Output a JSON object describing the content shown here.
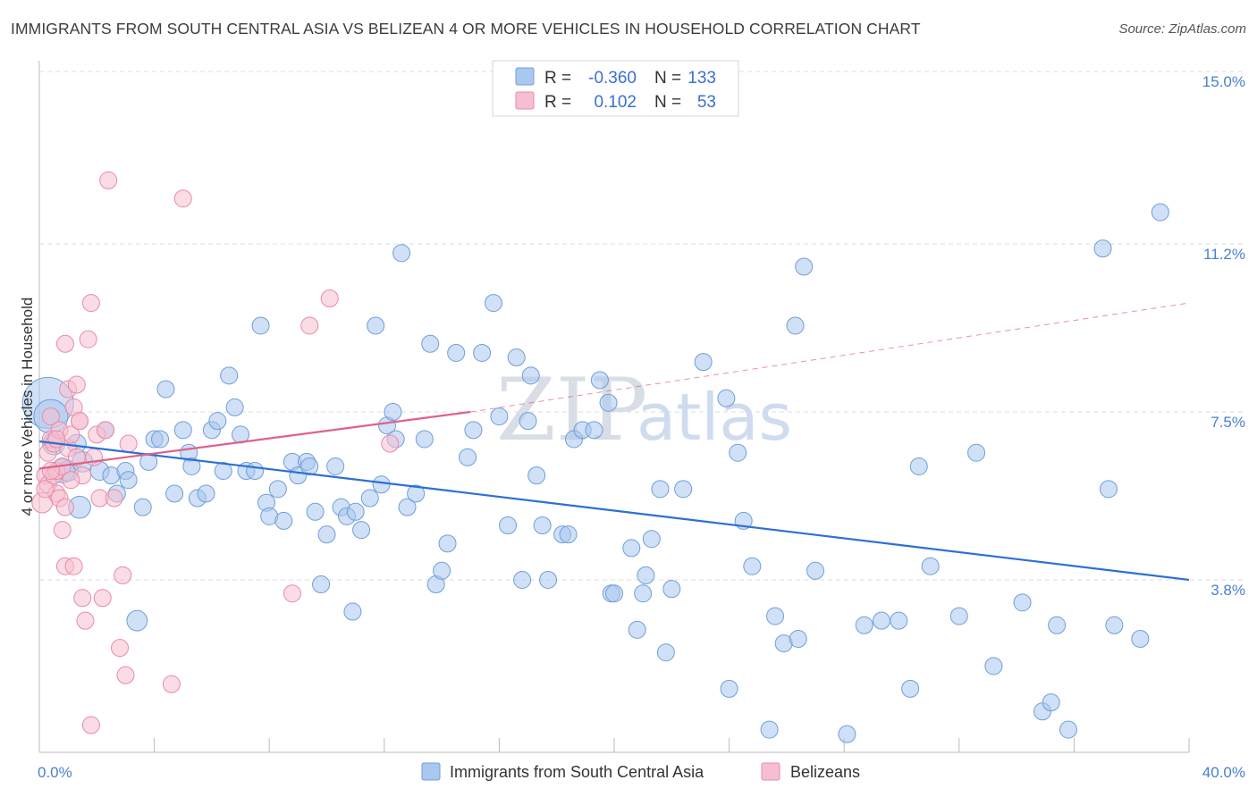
{
  "title": "IMMIGRANTS FROM SOUTH CENTRAL ASIA VS BELIZEAN 4 OR MORE VEHICLES IN HOUSEHOLD CORRELATION CHART",
  "source": "Source: ZipAtlas.com",
  "watermark": {
    "zip": "ZIP",
    "atlas": "atlas"
  },
  "colors": {
    "blue_fill": "#aac7ee",
    "blue_stroke": "#6f9fd8",
    "blue_line": "#2b6fd6",
    "pink_fill": "#f6bfd0",
    "pink_stroke": "#e98aa8",
    "pink_line": "#e0608b",
    "grid": "#dddddd",
    "tick_text": "#4a7fd0"
  },
  "legend": {
    "rows": [
      {
        "r_label": "R =",
        "r_value": "-0.360",
        "n_label": "N =",
        "n_value": "133"
      },
      {
        "r_label": "R =",
        "r_value": "0.102",
        "n_label": "N =",
        "n_value": "53"
      }
    ]
  },
  "bottom_legend": [
    "Immigrants from South Central Asia",
    "Belizeans"
  ],
  "chart_data": {
    "type": "scatter",
    "xlabel": "",
    "ylabel": "4 or more Vehicles in Household",
    "xlim": [
      0,
      40
    ],
    "ylim": [
      0,
      15.0
    ],
    "x_tick_labels": [
      "0.0%",
      "40.0%"
    ],
    "y_tick_labels": [
      {
        "value": 3.8,
        "label": "3.8%"
      },
      {
        "value": 7.5,
        "label": "7.5%"
      },
      {
        "value": 11.2,
        "label": "11.2%"
      },
      {
        "value": 15.0,
        "label": "15.0%"
      }
    ],
    "grid": true,
    "legend_placement": "top-center",
    "series": [
      {
        "name": "Immigrants from South Central Asia",
        "r": -0.36,
        "n": 133,
        "trend": {
          "x0": 0,
          "y0": 6.85,
          "x1": 40,
          "y1": 3.8
        },
        "points": [
          [
            0.3,
            7.7,
            3
          ],
          [
            0.4,
            7.4,
            2
          ],
          [
            0.5,
            6.8,
            1.3
          ],
          [
            0.8,
            6.2,
            1.4
          ],
          [
            1.0,
            6.2,
            1.2
          ],
          [
            1.5,
            6.4,
            1.2
          ],
          [
            1.3,
            6.8,
            1.1
          ],
          [
            1.4,
            5.4,
            1.3
          ],
          [
            2.1,
            6.2,
            1.1
          ],
          [
            2.3,
            7.1,
            1
          ],
          [
            2.5,
            6.1,
            1
          ],
          [
            2.7,
            5.7,
            1
          ],
          [
            3.0,
            6.2,
            1
          ],
          [
            3.1,
            6.0,
            1
          ],
          [
            3.4,
            2.9,
            1.2
          ],
          [
            3.6,
            5.4,
            1
          ],
          [
            3.8,
            6.4,
            1
          ],
          [
            4.0,
            6.9,
            1
          ],
          [
            4.2,
            6.9,
            1
          ],
          [
            4.4,
            8.0,
            1
          ],
          [
            4.7,
            5.7,
            1
          ],
          [
            5.0,
            7.1,
            1
          ],
          [
            5.2,
            6.6,
            1
          ],
          [
            5.3,
            6.3,
            1
          ],
          [
            5.5,
            5.6,
            1
          ],
          [
            5.8,
            5.7,
            1
          ],
          [
            6.0,
            7.1,
            1
          ],
          [
            6.2,
            7.3,
            1
          ],
          [
            6.4,
            6.2,
            1
          ],
          [
            6.6,
            8.3,
            1
          ],
          [
            6.8,
            7.6,
            1
          ],
          [
            7.0,
            7.0,
            1
          ],
          [
            7.2,
            6.2,
            1
          ],
          [
            7.5,
            6.2,
            1
          ],
          [
            7.7,
            9.4,
            1
          ],
          [
            7.9,
            5.5,
            1
          ],
          [
            8.0,
            5.2,
            1
          ],
          [
            8.3,
            5.8,
            1
          ],
          [
            8.5,
            5.1,
            1
          ],
          [
            8.8,
            6.4,
            1
          ],
          [
            9.0,
            6.1,
            1
          ],
          [
            9.3,
            6.4,
            1
          ],
          [
            9.4,
            6.3,
            1
          ],
          [
            9.6,
            5.3,
            1
          ],
          [
            9.8,
            3.7,
            1
          ],
          [
            10.0,
            4.8,
            1
          ],
          [
            10.3,
            6.3,
            1
          ],
          [
            10.5,
            5.4,
            1
          ],
          [
            10.7,
            5.2,
            1
          ],
          [
            10.9,
            3.1,
            1
          ],
          [
            11.0,
            5.3,
            1
          ],
          [
            11.2,
            4.9,
            1
          ],
          [
            11.5,
            5.6,
            1
          ],
          [
            11.7,
            9.4,
            1
          ],
          [
            11.9,
            5.9,
            1
          ],
          [
            12.1,
            7.2,
            1
          ],
          [
            12.3,
            7.5,
            1
          ],
          [
            12.4,
            6.9,
            1
          ],
          [
            12.6,
            11.0,
            1
          ],
          [
            12.8,
            5.4,
            1
          ],
          [
            13.1,
            5.7,
            1
          ],
          [
            13.4,
            6.9,
            1
          ],
          [
            13.6,
            9.0,
            1
          ],
          [
            13.8,
            3.7,
            1
          ],
          [
            14.0,
            4.0,
            1
          ],
          [
            14.2,
            4.6,
            1
          ],
          [
            14.5,
            8.8,
            1
          ],
          [
            14.9,
            6.5,
            1
          ],
          [
            15.1,
            7.1,
            1
          ],
          [
            15.4,
            8.8,
            1
          ],
          [
            15.8,
            9.9,
            1
          ],
          [
            16.0,
            7.4,
            1
          ],
          [
            16.3,
            5.0,
            1
          ],
          [
            16.6,
            8.7,
            1
          ],
          [
            16.8,
            3.8,
            1
          ],
          [
            17.0,
            7.3,
            1
          ],
          [
            17.1,
            8.3,
            1
          ],
          [
            17.3,
            6.1,
            1
          ],
          [
            17.7,
            3.8,
            1
          ],
          [
            17.5,
            5.0,
            1
          ],
          [
            18.2,
            4.8,
            1
          ],
          [
            18.4,
            4.8,
            1
          ],
          [
            18.6,
            6.9,
            1
          ],
          [
            18.9,
            7.1,
            1
          ],
          [
            19.3,
            7.1,
            1
          ],
          [
            19.5,
            8.2,
            1
          ],
          [
            19.8,
            7.7,
            1
          ],
          [
            19.9,
            3.5,
            1
          ],
          [
            20.0,
            3.5,
            1
          ],
          [
            20.6,
            4.5,
            1
          ],
          [
            20.8,
            2.7,
            1
          ],
          [
            21.0,
            3.5,
            1
          ],
          [
            21.1,
            3.9,
            1
          ],
          [
            21.3,
            4.7,
            1
          ],
          [
            21.6,
            5.8,
            1
          ],
          [
            21.8,
            2.2,
            1
          ],
          [
            22.0,
            3.6,
            1
          ],
          [
            22.4,
            5.8,
            1
          ],
          [
            23.1,
            8.6,
            1
          ],
          [
            23.9,
            7.8,
            1
          ],
          [
            24.3,
            6.6,
            1
          ],
          [
            24.5,
            5.1,
            1
          ],
          [
            24.8,
            4.1,
            1
          ],
          [
            25.4,
            0.5,
            1
          ],
          [
            25.6,
            3.0,
            1
          ],
          [
            25.9,
            2.4,
            1
          ],
          [
            26.3,
            9.4,
            1
          ],
          [
            26.4,
            2.5,
            1
          ],
          [
            26.6,
            10.7,
            1
          ],
          [
            27.0,
            4.0,
            1
          ],
          [
            28.1,
            0.4,
            1
          ],
          [
            28.7,
            2.8,
            1
          ],
          [
            29.3,
            2.9,
            1
          ],
          [
            29.9,
            2.9,
            1
          ],
          [
            30.3,
            1.4,
            1
          ],
          [
            30.6,
            6.3,
            1
          ],
          [
            31.0,
            4.1,
            1
          ],
          [
            32.0,
            3.0,
            1
          ],
          [
            32.6,
            6.6,
            1
          ],
          [
            33.2,
            1.9,
            1
          ],
          [
            34.2,
            3.3,
            1
          ],
          [
            34.9,
            0.9,
            1
          ],
          [
            35.2,
            1.1,
            1
          ],
          [
            35.4,
            2.8,
            1
          ],
          [
            35.8,
            0.5,
            1
          ],
          [
            37.0,
            11.1,
            1
          ],
          [
            37.2,
            5.8,
            1
          ],
          [
            37.4,
            2.8,
            1
          ],
          [
            38.3,
            2.5,
            1
          ],
          [
            39.0,
            11.9,
            1
          ],
          [
            24.0,
            1.4,
            1
          ]
        ]
      },
      {
        "name": "Belizeans",
        "r": 0.102,
        "n": 53,
        "trend": {
          "x0": 0,
          "y0": 6.25,
          "x1": 15,
          "y1": 7.5,
          "dashed_to_x": 40,
          "dashed_to_y": 9.9
        },
        "points": [
          [
            0.1,
            5.5,
            1.2
          ],
          [
            0.2,
            6.1,
            1
          ],
          [
            0.3,
            6.6,
            1
          ],
          [
            0.3,
            5.9,
            1
          ],
          [
            0.4,
            6.9,
            1
          ],
          [
            0.4,
            7.4,
            1
          ],
          [
            0.5,
            6.1,
            1
          ],
          [
            0.5,
            6.8,
            1
          ],
          [
            0.6,
            5.7,
            1
          ],
          [
            0.6,
            6.2,
            1
          ],
          [
            0.7,
            5.6,
            1
          ],
          [
            0.7,
            7.1,
            1
          ],
          [
            0.8,
            6.3,
            1
          ],
          [
            0.8,
            4.9,
            1
          ],
          [
            0.9,
            4.1,
            1
          ],
          [
            0.9,
            9.0,
            1
          ],
          [
            1.0,
            6.7,
            1
          ],
          [
            1.0,
            8.0,
            1
          ],
          [
            1.1,
            7.0,
            1
          ],
          [
            1.2,
            7.6,
            1
          ],
          [
            1.2,
            4.1,
            1
          ],
          [
            1.3,
            6.5,
            1
          ],
          [
            1.3,
            8.1,
            1
          ],
          [
            1.4,
            7.3,
            1
          ],
          [
            1.4,
            7.3,
            1
          ],
          [
            1.5,
            3.4,
            1
          ],
          [
            1.5,
            6.1,
            1
          ],
          [
            1.6,
            2.9,
            1
          ],
          [
            1.7,
            9.1,
            1
          ],
          [
            1.8,
            9.9,
            1
          ],
          [
            1.8,
            0.6,
            1
          ],
          [
            1.9,
            6.5,
            1
          ],
          [
            2.0,
            7.0,
            1
          ],
          [
            2.1,
            5.6,
            1
          ],
          [
            2.2,
            3.4,
            1
          ],
          [
            2.3,
            7.1,
            1
          ],
          [
            2.4,
            12.6,
            1
          ],
          [
            2.6,
            5.6,
            1
          ],
          [
            2.8,
            2.3,
            1
          ],
          [
            2.9,
            3.9,
            1
          ],
          [
            3.0,
            1.7,
            1
          ],
          [
            3.1,
            6.8,
            1
          ],
          [
            4.6,
            1.5,
            1
          ],
          [
            5.0,
            12.2,
            1
          ],
          [
            8.8,
            3.5,
            1
          ],
          [
            9.4,
            9.4,
            1
          ],
          [
            10.1,
            10.0,
            1
          ],
          [
            12.2,
            6.8,
            1
          ],
          [
            0.4,
            6.2,
            1
          ],
          [
            0.6,
            6.9,
            1
          ],
          [
            1.1,
            6.0,
            1
          ],
          [
            0.9,
            5.4,
            1
          ],
          [
            0.2,
            5.8,
            1
          ]
        ]
      }
    ]
  }
}
